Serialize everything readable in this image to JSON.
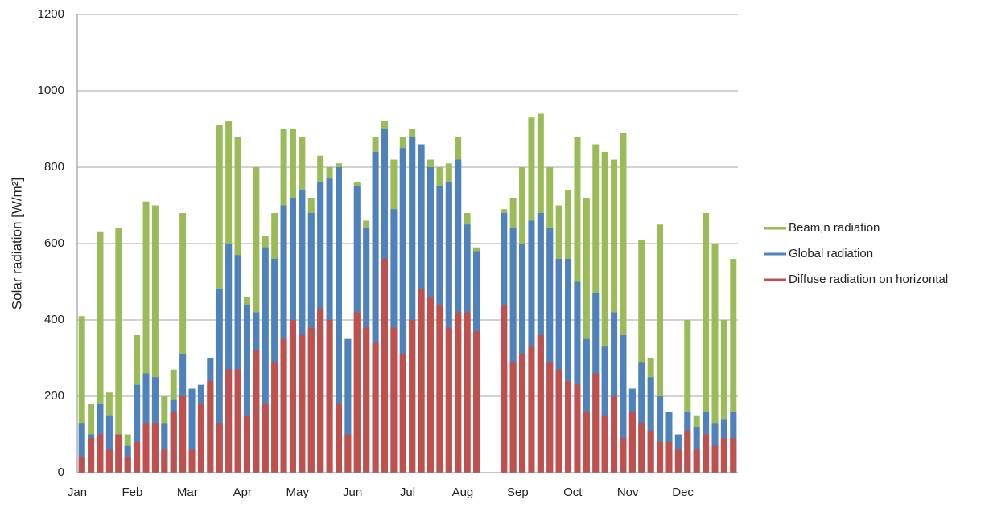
{
  "chart_data": {
    "type": "bar",
    "y_label": "Solar radiation [W/m²]",
    "categories": [
      "Jan",
      null,
      null,
      null,
      null,
      null,
      "Feb",
      null,
      null,
      null,
      null,
      null,
      "Mar",
      null,
      null,
      null,
      null,
      null,
      "Apr",
      null,
      null,
      null,
      null,
      null,
      "May",
      null,
      null,
      null,
      null,
      null,
      "Jun",
      null,
      null,
      null,
      null,
      null,
      "Jul",
      null,
      null,
      null,
      null,
      null,
      "Aug",
      null,
      null,
      null,
      null,
      null,
      "Sep",
      null,
      null,
      null,
      null,
      null,
      "Oct",
      null,
      null,
      null,
      null,
      null,
      "Nov",
      null,
      null,
      null,
      null,
      null,
      "Dec",
      null,
      null,
      null,
      null,
      null
    ],
    "series": [
      {
        "name": "Beam,n radiation",
        "color": "#9bbb59",
        "values": [
          410,
          180,
          630,
          210,
          640,
          100,
          360,
          710,
          700,
          200,
          270,
          680,
          220,
          230,
          300,
          910,
          920,
          880,
          460,
          800,
          620,
          680,
          900,
          900,
          880,
          720,
          830,
          800,
          810,
          350,
          760,
          660,
          880,
          920,
          820,
          880,
          900,
          860,
          820,
          800,
          810,
          880,
          680,
          590,
          0,
          0,
          690,
          720,
          800,
          930,
          940,
          800,
          700,
          740,
          880,
          720,
          860,
          840,
          820,
          890,
          220,
          610,
          300,
          650,
          160,
          100,
          400,
          150,
          680,
          600,
          400,
          560
        ]
      },
      {
        "name": "Global radiation",
        "color": "#4f81bd",
        "values": [
          130,
          100,
          180,
          150,
          100,
          70,
          230,
          260,
          250,
          130,
          190,
          310,
          220,
          230,
          300,
          480,
          600,
          570,
          440,
          420,
          590,
          560,
          700,
          720,
          740,
          680,
          760,
          770,
          800,
          350,
          750,
          640,
          840,
          900,
          690,
          850,
          880,
          860,
          800,
          750,
          760,
          820,
          650,
          580,
          0,
          0,
          680,
          640,
          600,
          660,
          680,
          640,
          560,
          560,
          500,
          350,
          470,
          330,
          420,
          360,
          220,
          290,
          250,
          200,
          160,
          100,
          160,
          120,
          160,
          130,
          140,
          160
        ]
      },
      {
        "name": "Diffuse radiation on horizontal",
        "color": "#c0504d",
        "values": [
          40,
          90,
          100,
          60,
          100,
          40,
          80,
          130,
          130,
          60,
          160,
          200,
          60,
          180,
          240,
          130,
          270,
          270,
          150,
          320,
          180,
          290,
          350,
          400,
          360,
          380,
          430,
          400,
          180,
          100,
          420,
          380,
          340,
          560,
          380,
          310,
          400,
          480,
          460,
          440,
          380,
          420,
          420,
          370,
          0,
          0,
          440,
          290,
          310,
          330,
          360,
          290,
          270,
          240,
          230,
          160,
          260,
          150,
          200,
          90,
          160,
          130,
          110,
          80,
          80,
          60,
          110,
          60,
          100,
          70,
          90,
          90
        ]
      }
    ],
    "ylim": [
      0,
      1200
    ],
    "yticks": [
      0,
      200,
      400,
      600,
      800,
      1000,
      1200
    ],
    "grid": true,
    "legend": "right"
  }
}
